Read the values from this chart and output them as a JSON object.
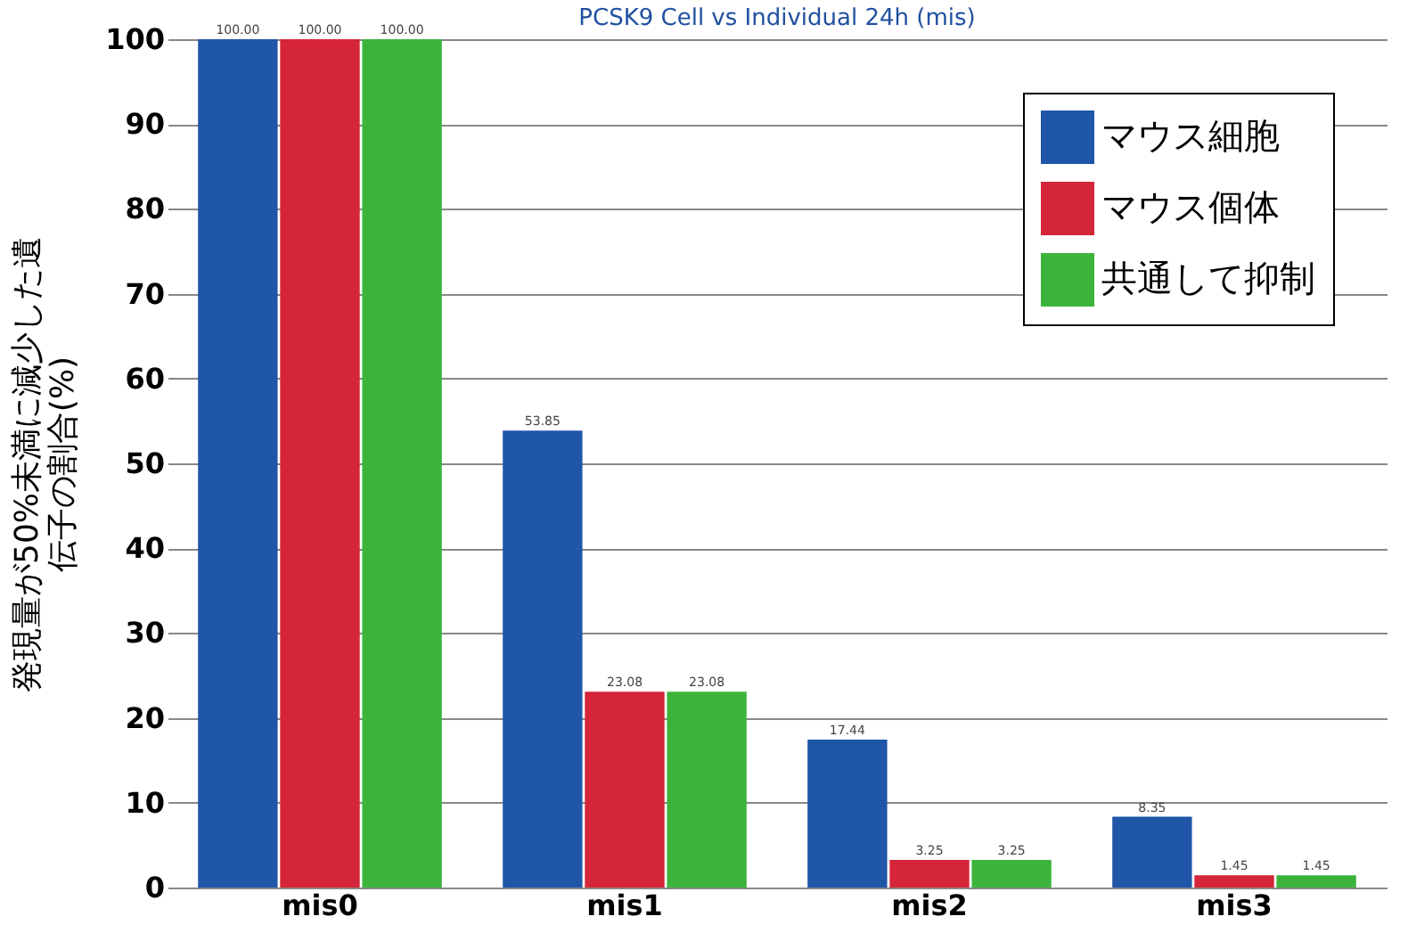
{
  "chart_data": {
    "type": "bar",
    "title": "PCSK9 Cell vs Individual 24h (mis)",
    "ylabel": "発現量が50%未満に減少した遺伝子の割合(%)",
    "categories": [
      "mis0",
      "mis1",
      "mis2",
      "mis3"
    ],
    "series": [
      {
        "name": "マウス細胞",
        "color": "#1f56a8",
        "values": [
          100,
          53.85,
          17.44,
          8.35
        ],
        "value_labels": [
          "100.00",
          "53.85",
          "17.44",
          "8.35"
        ]
      },
      {
        "name": "マウス個体",
        "color": "#d42638",
        "values": [
          100,
          23.08,
          3.25,
          1.45
        ],
        "value_labels": [
          "100.00",
          "23.08",
          "3.25",
          "1.45"
        ]
      },
      {
        "name": "共通して抑制",
        "color": "#3cb43c",
        "values": [
          100,
          23.08,
          3.25,
          1.45
        ],
        "value_labels": [
          "100.00",
          "23.08",
          "3.25",
          "1.45"
        ]
      }
    ],
    "ylim": [
      0,
      100
    ],
    "yticks": [
      0,
      10,
      20,
      30,
      40,
      50,
      60,
      70,
      80,
      90,
      100
    ],
    "grid": "y",
    "legend": "top right"
  }
}
